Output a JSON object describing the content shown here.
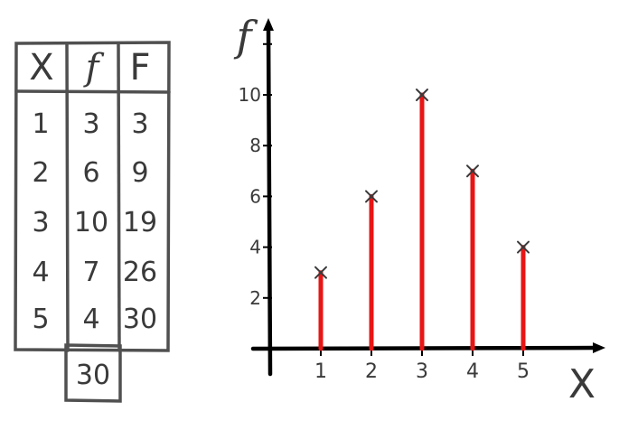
{
  "table": {
    "headers": [
      "X",
      "f",
      "F"
    ],
    "rows": [
      [
        "1",
        "3",
        "3"
      ],
      [
        "2",
        "6",
        "9"
      ],
      [
        "3",
        "10",
        "19"
      ],
      [
        "4",
        "7",
        "26"
      ],
      [
        "5",
        "4",
        "30"
      ]
    ],
    "total": "30"
  },
  "chart_data": {
    "type": "bar",
    "style": "stick-plot",
    "x": [
      1,
      2,
      3,
      4,
      5
    ],
    "values": [
      3,
      6,
      10,
      7,
      4
    ],
    "xlabel": "X",
    "ylabel": "f",
    "x_ticks": [
      "1",
      "2",
      "3",
      "4",
      "5"
    ],
    "y_ticks": [
      "2",
      "4",
      "6",
      "8",
      "10"
    ],
    "ylim": [
      0,
      12
    ],
    "grid": false,
    "marker": "x",
    "colors": {
      "stick": "#e81515",
      "axis": "#000000",
      "ink": "#3a3a3a"
    }
  }
}
